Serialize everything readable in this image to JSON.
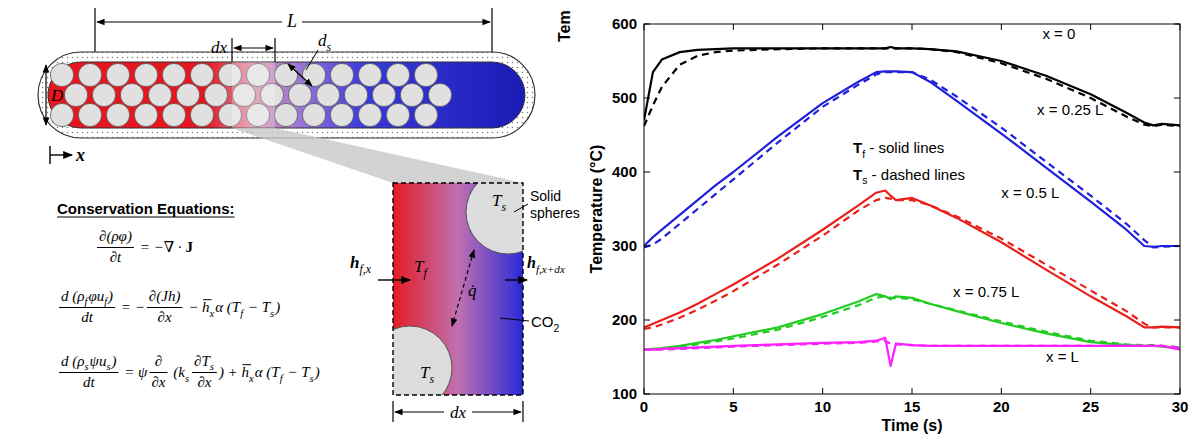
{
  "diagram": {
    "dimension_L": "L",
    "dimension_dx": "dx",
    "sphere_diameter": {
      "b": "d",
      "s": "s"
    },
    "diameter": "D",
    "axis": "x",
    "equations_title": "Conservation Equations:",
    "equations": [
      [
        {
          "frac": [
            [
              "∂(ρφ)"
            ],
            [
              "∂t"
            ]
          ]
        },
        " = −∇ · ",
        {
          "bold": "J"
        }
      ],
      [
        {
          "frac": [
            [
              "d (",
              {
                "b": "ρ",
                "s": "f"
              },
              "φ",
              {
                "b": "u",
                "s": "f"
              },
              ")"
            ],
            [
              "dt"
            ]
          ]
        },
        " = −",
        {
          "frac": [
            [
              "∂(Jh)"
            ],
            [
              "∂x"
            ]
          ]
        },
        " − ",
        {
          "over": "h",
          "s": "x"
        },
        "α (",
        {
          "b": "T",
          "s": "f"
        },
        " − ",
        {
          "b": "T",
          "s": "s"
        },
        ")"
      ],
      [
        {
          "frac": [
            [
              "d (",
              {
                "b": "ρ",
                "s": "s"
              },
              "ψ",
              {
                "b": "u",
                "s": "s"
              },
              ")"
            ],
            [
              "dt"
            ]
          ]
        },
        " = ψ",
        {
          "frac": [
            [
              "∂"
            ],
            [
              "∂x"
            ]
          ]
        },
        " (",
        {
          "b": "k",
          "s": "s"
        },
        {
          "frac": [
            [
              "∂",
              {
                "b": "T",
                "s": "s"
              }
            ],
            [
              "∂x"
            ]
          ]
        },
        ") + ",
        {
          "over": "h",
          "s": "x"
        },
        "α (",
        {
          "b": "T",
          "s": "f"
        },
        " − ",
        {
          "b": "T",
          "s": "s"
        },
        ")"
      ]
    ],
    "zoom": {
      "solid_label": [
        "Solid",
        "spheres"
      ],
      "solid_temperatures": [
        {
          "b": "T",
          "s": "s"
        },
        {
          "b": "T",
          "s": "s"
        }
      ],
      "fluid_temperature": {
        "b": "T",
        "s": "f"
      },
      "heat_flux": "q̇",
      "inflow": {
        "b": "h",
        "s": "f,x"
      },
      "outflow": {
        "b": "h",
        "s": "f,x+dx"
      },
      "fluid": {
        "b": "CO",
        "s": "2"
      },
      "width": "dx"
    }
  },
  "cropped_label": "Tem",
  "chart_data": {
    "type": "line",
    "x_label": "Time (s)",
    "y_label": "Temperature (°C)",
    "x": [
      0,
      0.5,
      1,
      2,
      3,
      4,
      5,
      7.5,
      10,
      12,
      13,
      13.5,
      13.8,
      14.1,
      15,
      16,
      17.5,
      20,
      22.5,
      25,
      27,
      28,
      28.5,
      29,
      30
    ],
    "xlim": [
      0,
      30
    ],
    "xticks": [
      0,
      5,
      10,
      15,
      20,
      25,
      30
    ],
    "ylim": [
      100,
      600
    ],
    "yticks": [
      100,
      200,
      300,
      400,
      500,
      600
    ],
    "grid": false,
    "series": [
      {
        "color": "#000000",
        "line_style": "solid",
        "values": [
          470,
          535,
          552,
          562,
          565,
          566,
          567,
          567,
          567,
          567,
          567,
          567,
          569,
          567,
          567,
          566,
          563,
          550,
          530,
          505,
          480,
          467,
          463,
          465,
          463
        ]
      },
      {
        "color": "#000000",
        "line_style": "dashed",
        "values": [
          462,
          490,
          515,
          545,
          557,
          562,
          564,
          566,
          567,
          567,
          567,
          567,
          567,
          567,
          567,
          566,
          562,
          547,
          526,
          500,
          475,
          464,
          462,
          464,
          462
        ]
      },
      {
        "color": "#1f1fdc",
        "line_style": "solid",
        "values": [
          300,
          312,
          322,
          342,
          362,
          382,
          400,
          448,
          493,
          522,
          535,
          536,
          536,
          536,
          535,
          522,
          496,
          452,
          406,
          360,
          322,
          300,
          299,
          300,
          300
        ]
      },
      {
        "color": "#1f1fdc",
        "line_style": "dashed",
        "values": [
          298,
          302,
          310,
          330,
          350,
          370,
          390,
          440,
          488,
          518,
          532,
          535,
          535,
          535,
          535,
          525,
          502,
          460,
          414,
          368,
          330,
          308,
          298,
          299,
          300
        ]
      },
      {
        "color": "#e8201c",
        "line_style": "solid",
        "values": [
          190,
          195,
          200,
          210,
          222,
          235,
          248,
          283,
          322,
          355,
          372,
          375,
          368,
          362,
          365,
          355,
          338,
          305,
          268,
          232,
          205,
          190,
          190,
          191,
          190
        ]
      },
      {
        "color": "#e8201c",
        "line_style": "dashed",
        "values": [
          188,
          190,
          194,
          203,
          214,
          226,
          239,
          275,
          314,
          348,
          362,
          365,
          364,
          362,
          362,
          355,
          340,
          310,
          275,
          240,
          212,
          195,
          190,
          190,
          190
        ]
      },
      {
        "color": "#22cc22",
        "line_style": "solid",
        "values": [
          160,
          161,
          162,
          165,
          169,
          173,
          178,
          190,
          208,
          225,
          235,
          232,
          228,
          232,
          230,
          222,
          212,
          196,
          182,
          170,
          166,
          165,
          165,
          164,
          162
        ]
      },
      {
        "color": "#22cc22",
        "line_style": "dashed",
        "values": [
          160,
          160,
          161,
          164,
          167,
          171,
          175,
          187,
          204,
          220,
          230,
          232,
          230,
          230,
          228,
          222,
          213,
          198,
          184,
          172,
          167,
          166,
          166,
          165,
          163
        ]
      },
      {
        "color": "#ff20ff",
        "line_style": "solid",
        "values": [
          160,
          160,
          161,
          162,
          163,
          164,
          165,
          167,
          169,
          170,
          172,
          176,
          138,
          168,
          166,
          165,
          165,
          165,
          165,
          165,
          165,
          165,
          165,
          165,
          160
        ]
      },
      {
        "color": "#ff20ff",
        "line_style": "dashed",
        "values": [
          160,
          160,
          160,
          161,
          162,
          163,
          164,
          166,
          168,
          169,
          171,
          172,
          168,
          167,
          166,
          165,
          165,
          165,
          165,
          165,
          165,
          165,
          165,
          165,
          163
        ]
      }
    ],
    "annotations": [
      {
        "text": "x = 0",
        "x": 22.3,
        "y": 586
      },
      {
        "text": "x = 0.25 L",
        "x": 22,
        "y": 484
      },
      {
        "text": "x = 0.5 L",
        "x": 20,
        "y": 372
      },
      {
        "text": "x = 0.75 L",
        "x": 17.3,
        "y": 238
      },
      {
        "text": "x = L",
        "x": 22.5,
        "y": 150
      },
      {
        "b": "T",
        "s": "f",
        "text": " - solid lines",
        "x": 11.7,
        "y": 432
      },
      {
        "b": "T",
        "s": "s",
        "text": " - dashed lines",
        "x": 11.7,
        "y": 396
      }
    ]
  }
}
